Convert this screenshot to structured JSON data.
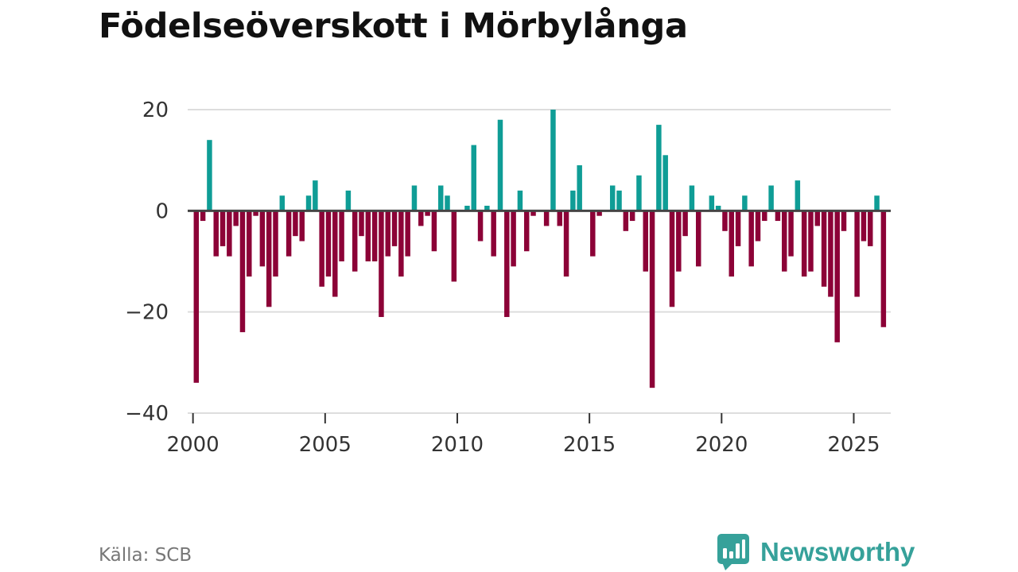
{
  "chart_data": {
    "type": "bar",
    "title": "Födelseöverskott i Mörbylånga",
    "xlabel": "",
    "ylabel": "",
    "ylim": [
      -40,
      20
    ],
    "xlim": [
      1999.8,
      2026.4
    ],
    "yticks": [
      20,
      0,
      -20,
      -40
    ],
    "ytick_labels": [
      "20",
      "0",
      "−20",
      "−40"
    ],
    "xticks": [
      2000,
      2005,
      2010,
      2015,
      2020,
      2025
    ],
    "xtick_labels": [
      "2000",
      "2005",
      "2010",
      "2015",
      "2020",
      "2025"
    ],
    "grid": true,
    "frequency": "quarterly",
    "start_year": 2000,
    "series": [
      {
        "name": "Födelseöverskott",
        "values": [
          -34,
          -2,
          14,
          -9,
          -7,
          -9,
          -3,
          -24,
          -13,
          -1,
          -11,
          -19,
          -13,
          3,
          -9,
          -5,
          -6,
          3,
          6,
          -15,
          -13,
          -17,
          -10,
          4,
          -12,
          -5,
          -10,
          -10,
          -21,
          -9,
          -7,
          -13,
          -9,
          5,
          -3,
          -1,
          -8,
          5,
          3,
          -14,
          0,
          1,
          13,
          -6,
          1,
          -9,
          18,
          -21,
          -11,
          4,
          -8,
          -1,
          0,
          -3,
          20,
          -3,
          -13,
          4,
          9,
          0,
          -9,
          -1,
          0,
          5,
          4,
          -4,
          -2,
          7,
          -12,
          -35,
          17,
          11,
          -19,
          -12,
          -5,
          5,
          -11,
          0,
          3,
          1,
          -4,
          -13,
          -7,
          3,
          -11,
          -6,
          -2,
          5,
          -2,
          -12,
          -9,
          6,
          -13,
          -12,
          -3,
          -15,
          -17,
          -26,
          -4,
          0,
          -17,
          -6,
          -7,
          3,
          -23
        ]
      }
    ],
    "colors": {
      "positive": "#0f9d96",
      "negative": "#8c0237",
      "grid": "#dddddd",
      "zero_line": "#444444"
    }
  },
  "footer": {
    "source": "Källa: SCB",
    "brand": "Newsworthy"
  }
}
